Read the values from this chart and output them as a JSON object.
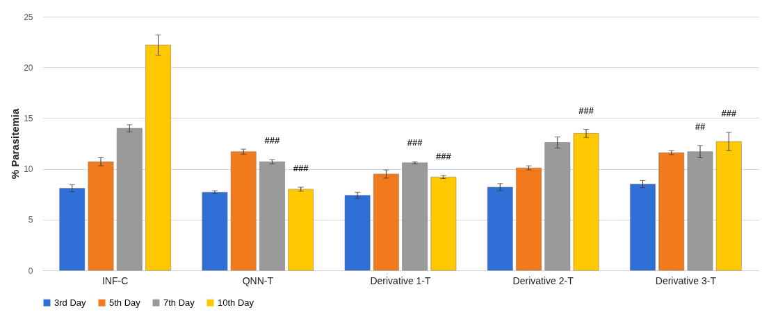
{
  "chart_data": {
    "type": "bar",
    "ylabel": "% Parasitemia",
    "categories": [
      "INF-C",
      "QNN-T",
      "Derivative 1-T",
      "Derivative 2-T",
      "Derivative 3-T"
    ],
    "series": [
      {
        "name": "3rd Day",
        "color": "#2f6fd6",
        "values": [
          8.1,
          7.7,
          7.4,
          8.2,
          8.5
        ],
        "errors": [
          0.35,
          0.15,
          0.3,
          0.35,
          0.35
        ]
      },
      {
        "name": "5th Day",
        "color": "#f07a1c",
        "values": [
          10.7,
          11.7,
          9.5,
          10.1,
          11.6
        ],
        "errors": [
          0.4,
          0.25,
          0.4,
          0.2,
          0.2
        ]
      },
      {
        "name": "7th Day",
        "color": "#9a9a9a",
        "values": [
          14.0,
          10.7,
          10.6,
          12.6,
          11.7
        ],
        "errors": [
          0.35,
          0.2,
          0.1,
          0.55,
          0.6
        ]
      },
      {
        "name": "10th Day",
        "color": "#ffc800",
        "values": [
          22.2,
          8.0,
          9.2,
          13.5,
          12.7
        ],
        "errors": [
          1.0,
          0.2,
          0.15,
          0.4,
          0.9
        ]
      }
    ],
    "ylim": [
      0,
      25
    ],
    "yticks": [
      0,
      5,
      10,
      15,
      20,
      25
    ],
    "grid": "y",
    "legend": "bottom",
    "annotations": [
      "###",
      "###",
      "###",
      "###",
      "###",
      "##",
      "###"
    ]
  }
}
